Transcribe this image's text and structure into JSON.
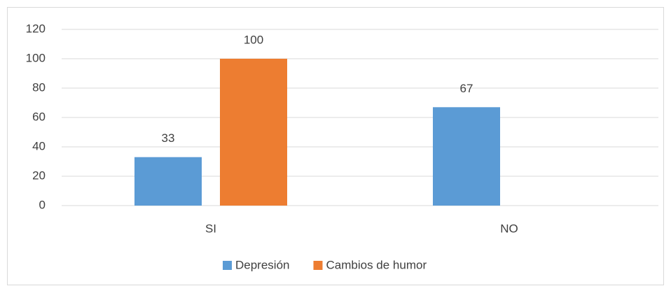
{
  "chart_data": {
    "type": "bar",
    "categories": [
      "SI",
      "NO"
    ],
    "series": [
      {
        "name": "Depresión",
        "color": "#5b9bd5",
        "values": [
          33,
          67
        ]
      },
      {
        "name": "Cambios de humor",
        "color": "#ed7d31",
        "values": [
          100,
          null
        ]
      }
    ],
    "ylim": [
      0,
      120
    ],
    "yticks": [
      0,
      20,
      40,
      60,
      80,
      100,
      120
    ],
    "grid": true,
    "legend": "bottom"
  }
}
